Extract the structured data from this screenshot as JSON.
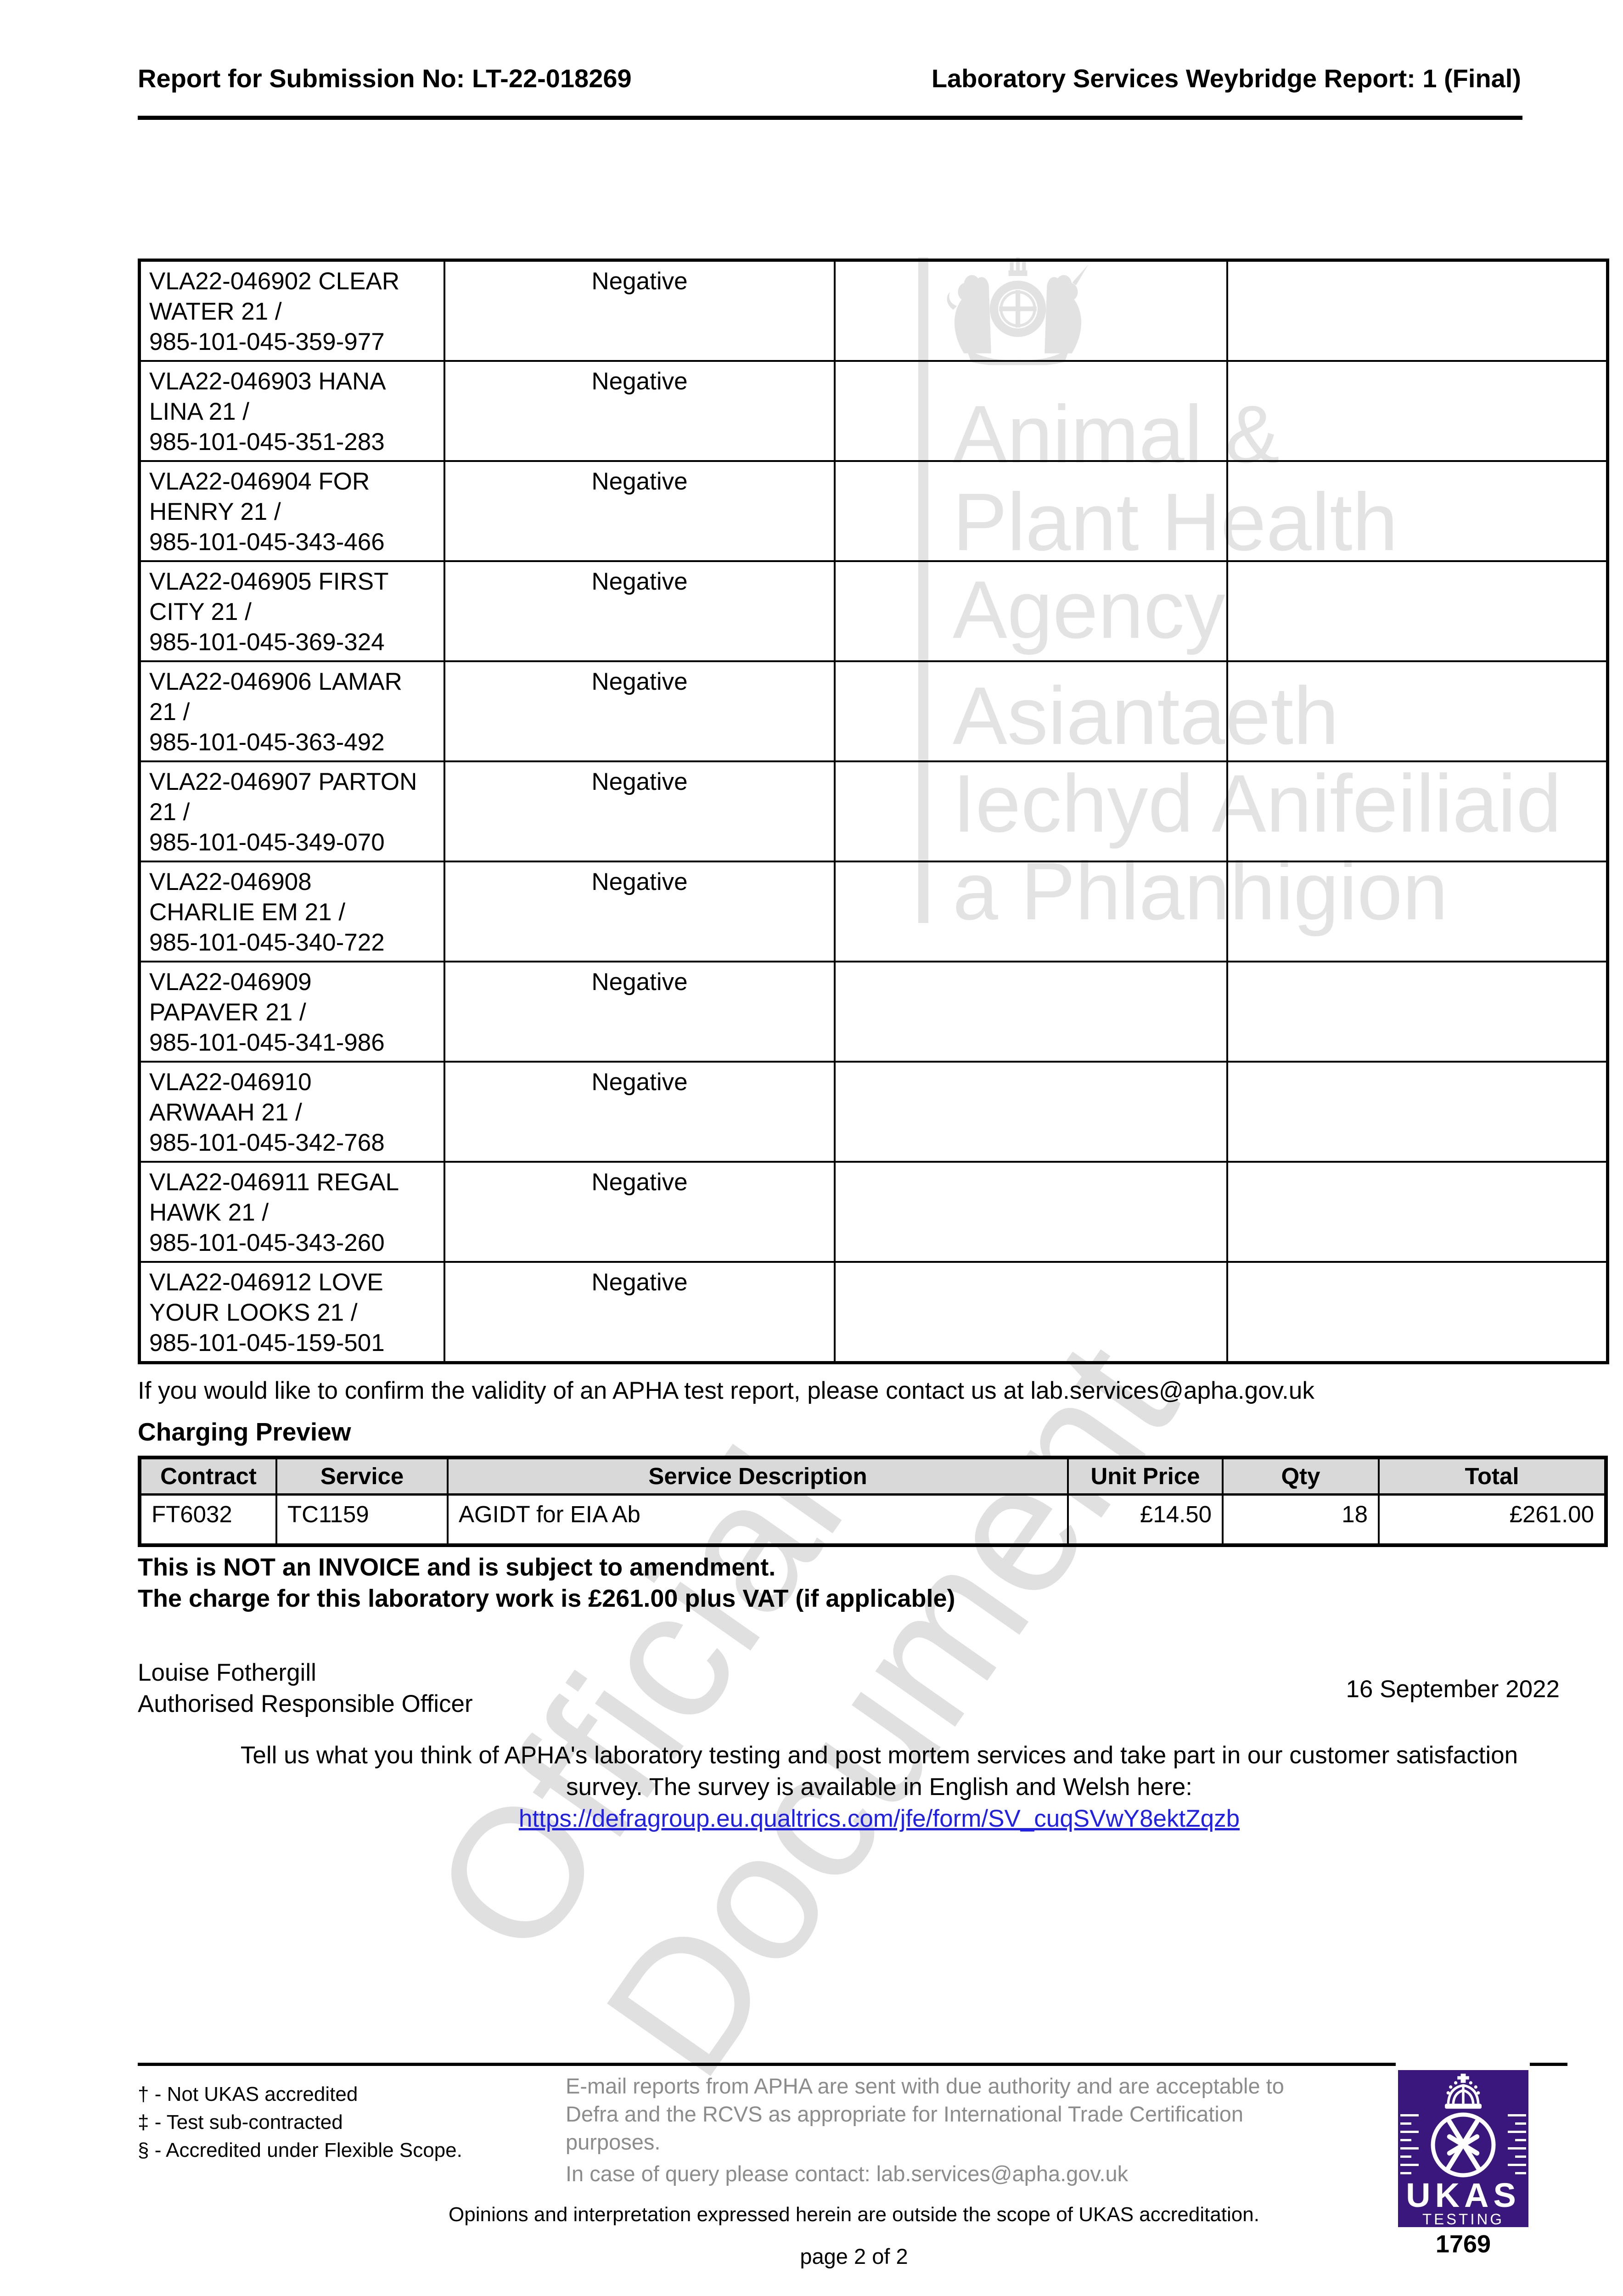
{
  "header": {
    "left": "Report for Submission No: LT-22-018269",
    "right": "Laboratory Services Weybridge Report: 1 (Final)"
  },
  "results_table": {
    "rows": [
      {
        "sample_lines": [
          "VLA22-046902 CLEAR",
          "WATER 21 /",
          "985-101-045-359-977"
        ],
        "result": "Negative"
      },
      {
        "sample_lines": [
          "VLA22-046903 HANA",
          "LINA 21 /",
          "985-101-045-351-283"
        ],
        "result": "Negative"
      },
      {
        "sample_lines": [
          "VLA22-046904 FOR",
          "HENRY 21 /",
          "985-101-045-343-466"
        ],
        "result": "Negative"
      },
      {
        "sample_lines": [
          "VLA22-046905 FIRST",
          "CITY 21 /",
          "985-101-045-369-324"
        ],
        "result": "Negative"
      },
      {
        "sample_lines": [
          "VLA22-046906 LAMAR",
          "21 /",
          "985-101-045-363-492"
        ],
        "result": "Negative"
      },
      {
        "sample_lines": [
          "VLA22-046907 PARTON",
          "21 /",
          "985-101-045-349-070"
        ],
        "result": "Negative"
      },
      {
        "sample_lines": [
          "VLA22-046908",
          "CHARLIE EM 21 /",
          "985-101-045-340-722"
        ],
        "result": "Negative"
      },
      {
        "sample_lines": [
          "VLA22-046909",
          "PAPAVER 21 /",
          "985-101-045-341-986"
        ],
        "result": "Negative"
      },
      {
        "sample_lines": [
          "VLA22-046910",
          "ARWAAH 21 /",
          "985-101-045-342-768"
        ],
        "result": "Negative"
      },
      {
        "sample_lines": [
          "VLA22-046911 REGAL",
          "HAWK 21 /",
          "985-101-045-343-260"
        ],
        "result": "Negative"
      },
      {
        "sample_lines": [
          "VLA22-046912 LOVE",
          "YOUR LOOKS 21 /",
          "985-101-045-159-501"
        ],
        "result": "Negative"
      }
    ]
  },
  "validity_note": "If you would like to confirm the validity of an APHA test report, please contact us at lab.services@apha.gov.uk",
  "charging": {
    "heading": "Charging Preview",
    "headers": [
      "Contract",
      "Service",
      "Service Description",
      "Unit Price",
      "Qty",
      "Total"
    ],
    "row": {
      "contract": "FT6032",
      "service": "TC1159",
      "description": "AGIDT for EIA Ab",
      "unit_price": "£14.50",
      "qty": "18",
      "total": "£261.00"
    }
  },
  "invoice_notes": {
    "line1": "This is NOT an INVOICE and is subject to amendment.",
    "line2": "The charge for this laboratory work is £261.00 plus VAT (if applicable)"
  },
  "signer": {
    "name": "Louise Fothergill",
    "title": "Authorised Responsible Officer",
    "date": "16 September 2022"
  },
  "survey": {
    "line1": "Tell us what you think of APHA's laboratory testing and post mortem services and take part in our customer satisfaction",
    "line2": "survey. The survey is available in English and Welsh here:",
    "link": "https://defragroup.eu.qualtrics.com/jfe/form/SV_cuqSVwY8ektZqzb"
  },
  "footnotes": [
    "† - Not UKAS accredited",
    "‡ - Test sub-contracted",
    "§ - Accredited under Flexible Scope."
  ],
  "email_note": {
    "lines": [
      "E-mail reports from APHA are sent with due authority and are acceptable to",
      "Defra and the RCVS as appropriate for International Trade Certification",
      "purposes."
    ],
    "query": "In case of query please contact: lab.services@apha.gov.uk"
  },
  "opinions_note": "Opinions and interpretation expressed herein are outside the scope of UKAS accreditation.",
  "page_label": "page 2 of 2",
  "ukas": {
    "name": "UKAS",
    "category": "TESTING",
    "number": "1769"
  },
  "watermark": {
    "english_lines": [
      "Animal &",
      "Plant Health",
      "Agency"
    ],
    "welsh_lines": [
      "Asiantaeth",
      "Iechyd Anifeiliaid",
      "a Phlanhigion"
    ],
    "diagonal_lines": [
      "Official",
      "Document"
    ]
  },
  "colors": {
    "link_blue": "#1f1fe8",
    "ukas_purple": "#39177c",
    "charging_header_grey": "#d9d9d9",
    "footer_text_grey": "#8c8c8c",
    "watermark_grey": "#e3e3e3"
  }
}
